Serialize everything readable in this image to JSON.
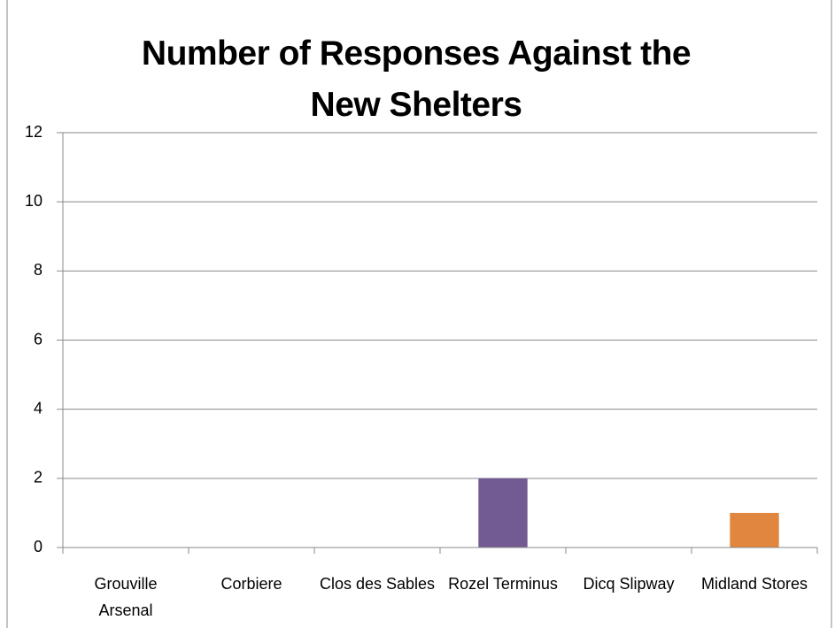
{
  "chart_data": {
    "type": "bar",
    "title": "Number of Responses Against the New Shelters",
    "categories": [
      "Grouville Arsenal",
      "Corbiere",
      "Clos des Sables",
      "Rozel Terminus",
      "Dicq Slipway",
      "Midland Stores"
    ],
    "values": [
      0,
      0,
      0,
      2,
      0,
      1
    ],
    "colors": [
      "#4f81bd",
      "#c0504d",
      "#9bbb59",
      "#725a92",
      "#4bacc6",
      "#e0863f"
    ],
    "ylim": [
      0,
      12
    ],
    "yticks": [
      0,
      2,
      4,
      6,
      8,
      10,
      12
    ],
    "grid": true
  }
}
